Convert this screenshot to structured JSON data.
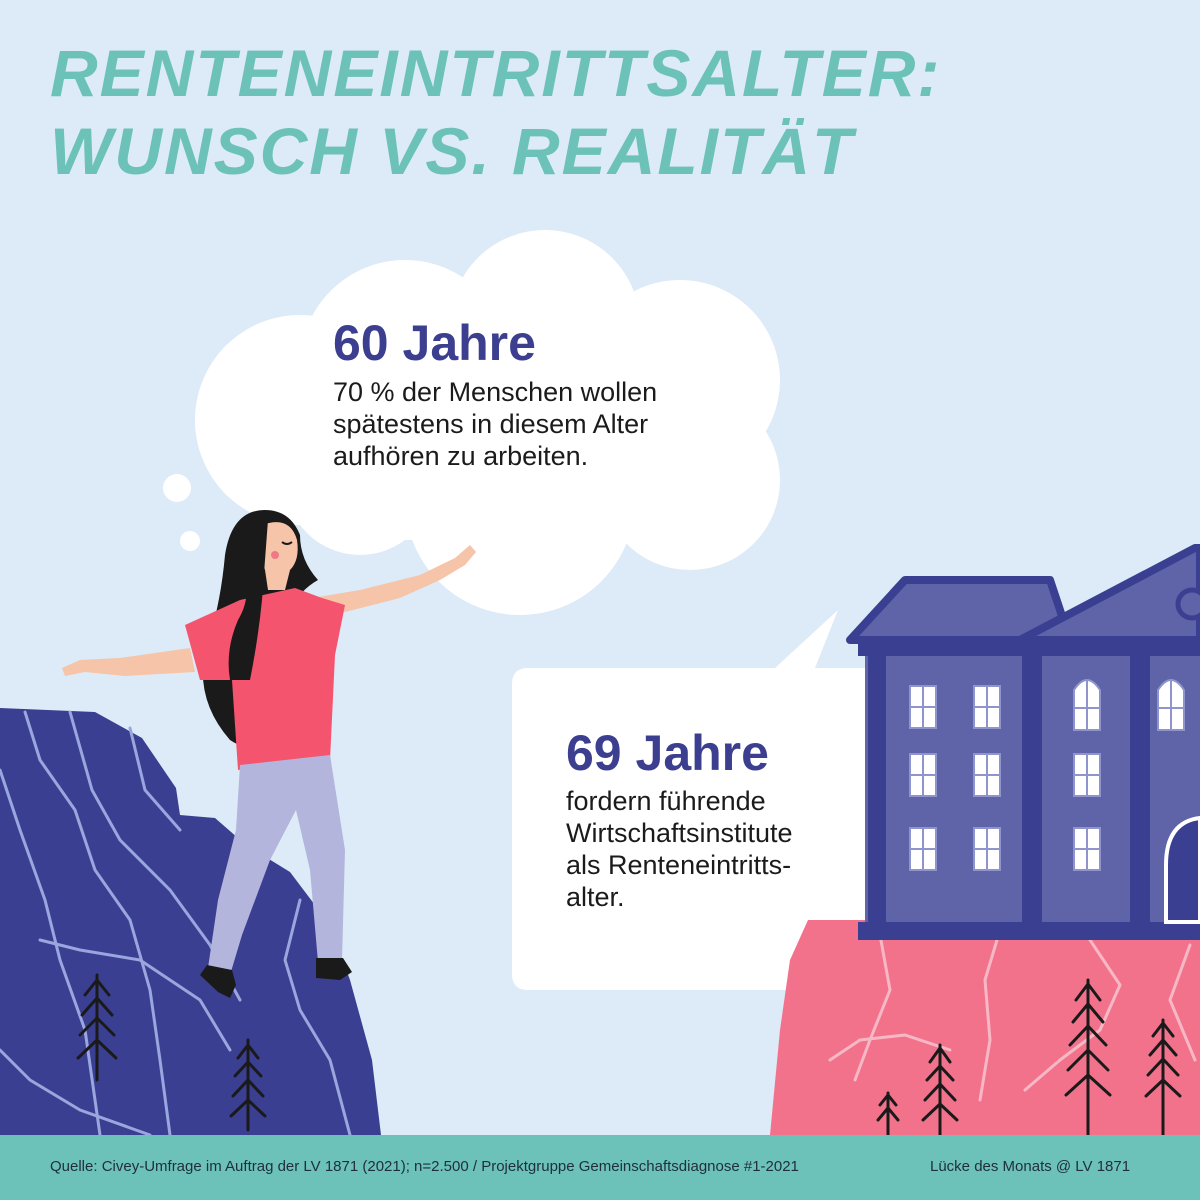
{
  "title": {
    "line1": "RENTENEINTRITTSALTER:",
    "line2": "WUNSCH VS. REALITÄT"
  },
  "wish": {
    "headline": "60 Jahre",
    "text": "70 % der Menschen wollen\nspätestens in diesem Alter\naufhören zu arbeiten."
  },
  "reality": {
    "headline": "69 Jahre",
    "text": "fordern führende\nWirtschaftsinstitute\nals Renteneintritts-\nalter."
  },
  "footer": {
    "source": "Quelle: Civey-Umfrage im Auftrag der LV 1871 (2021); n=2.500 / Projektgruppe Gemeinschaftsdiagnose #1-2021",
    "credit": "Lücke des Monats @ LV 1871"
  },
  "colors": {
    "background": "#dcebf7",
    "title": "#6cc1b8",
    "headline": "#3c3f8f",
    "left_cliff": "#3b3f92",
    "right_cliff": "#f2728c",
    "building": "#5f64a8",
    "footer_bar": "#6cc1b8"
  }
}
